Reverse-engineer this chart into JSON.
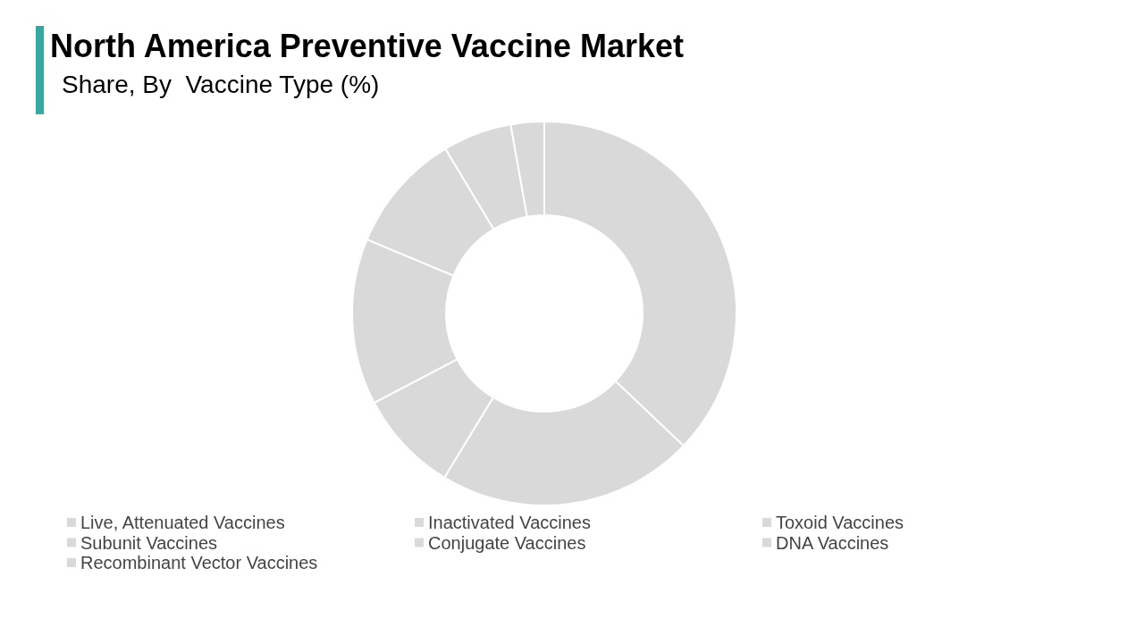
{
  "chart_data": {
    "type": "donut",
    "title": "North America Preventive Vaccine Market",
    "subtitle": "Share, By  Vaccine Type (%)",
    "categories": [
      "Live, Attenuated Vaccines",
      "Inactivated Vaccines",
      "Toxoid Vaccines",
      "Subunit Vaccines",
      "Conjugate Vaccines",
      "DNA Vaccines",
      "Recombinant Vector Vaccines"
    ],
    "values": [
      37.1,
      21.6,
      8.6,
      14,
      10.1,
      5.8,
      2.8
    ],
    "colors": [
      "#d9d9d9",
      "#d9d9d9",
      "#d9d9d9",
      "#d9d9d9",
      "#d9d9d9",
      "#d9d9d9",
      "#d9d9d9"
    ],
    "legend": "bottom"
  }
}
